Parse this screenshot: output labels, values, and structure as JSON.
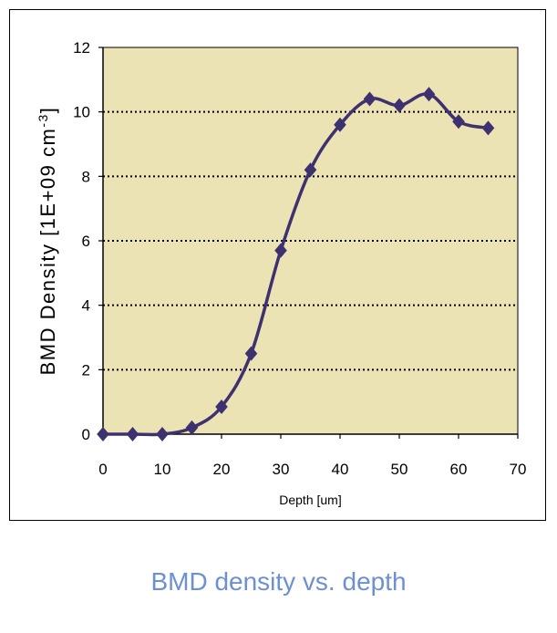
{
  "caption": "BMD density vs. depth",
  "chart_data": {
    "type": "line",
    "xlabel": "Depth [um]",
    "ylabel": "BMD Density [1E+09 cm",
    "ylabel_superscript": "-3",
    "ylabel_close": "]",
    "xlim": [
      0,
      70
    ],
    "ylim": [
      0,
      12
    ],
    "xticks": [
      0,
      10,
      20,
      30,
      40,
      50,
      60,
      70
    ],
    "yticks": [
      0,
      2,
      4,
      6,
      8,
      10,
      12
    ],
    "grid": "horizontal dotted",
    "series": [
      {
        "x": [
          0,
          5,
          10,
          15,
          20,
          25,
          30,
          35,
          40,
          45,
          50,
          55,
          60,
          65
        ],
        "values": [
          0,
          0,
          0,
          0.2,
          0.85,
          2.5,
          5.7,
          8.2,
          9.6,
          10.4,
          10.2,
          10.55,
          9.7,
          9.5
        ]
      }
    ],
    "colors": {
      "plot_background": "#ece3b4",
      "line": "#3e3170",
      "marker": "#3e3170",
      "caption": "#6e8fd0"
    },
    "marker": "diamond"
  }
}
